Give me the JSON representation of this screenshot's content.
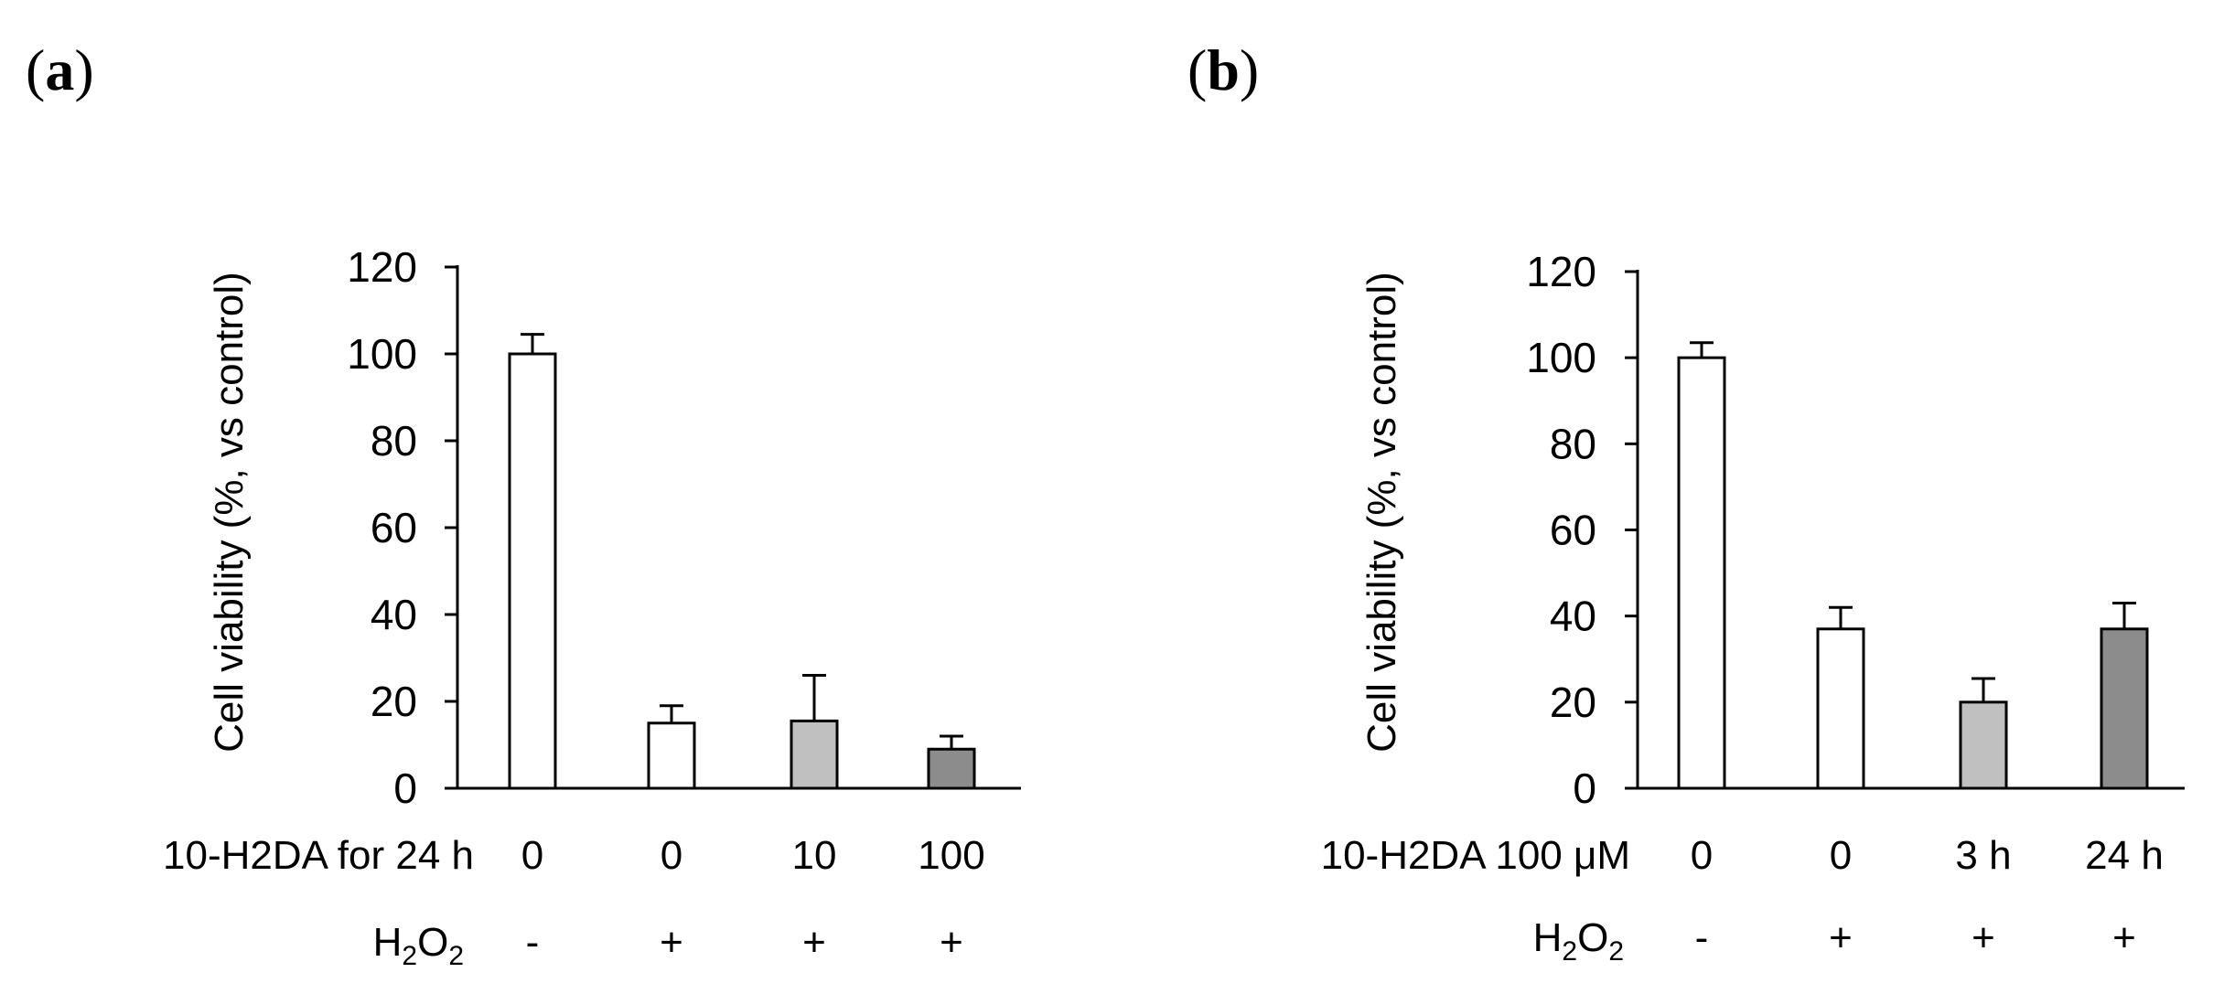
{
  "colors": {
    "white_bar": "#ffffff",
    "light_gray_bar": "#c0c0c0",
    "dark_gray_bar": "#8c8c8c",
    "stroke": "#000000"
  },
  "chart_data": [
    {
      "type": "bar",
      "panel_label": "a",
      "ylabel": "Cell viability (%, vs control)",
      "ylim": [
        0,
        120
      ],
      "yticks": [
        "0",
        "20",
        "40",
        "60",
        "80",
        "100",
        "120"
      ],
      "grid": false,
      "row_labels": [
        {
          "label": "10-H2DA for 24 h",
          "values": [
            "0",
            "0",
            "10",
            "100"
          ]
        },
        {
          "label_main": "H",
          "label_sub1": "2",
          "label_mid": "O",
          "label_sub2": "2",
          "values": [
            "-",
            "+",
            "+",
            "+"
          ]
        }
      ],
      "values": [
        100,
        15,
        15.5,
        9
      ],
      "errors": [
        4.5,
        4,
        10.5,
        3
      ],
      "fills": [
        "#ffffff",
        "#ffffff",
        "#c0c0c0",
        "#8c8c8c"
      ]
    },
    {
      "type": "bar",
      "panel_label": "b",
      "ylabel": "Cell viability (%, vs control)",
      "ylim": [
        0,
        120
      ],
      "yticks": [
        "0",
        "20",
        "40",
        "60",
        "80",
        "100",
        "120"
      ],
      "grid": false,
      "row_labels": [
        {
          "label": "10-H2DA 100 μM",
          "values": [
            "0",
            "0",
            "3 h",
            "24 h"
          ]
        },
        {
          "label_main": "H",
          "label_sub1": "2",
          "label_mid": "O",
          "label_sub2": "2",
          "values": [
            "-",
            "+",
            "+",
            "+"
          ]
        }
      ],
      "values": [
        100,
        37,
        20,
        37
      ],
      "errors": [
        3.5,
        5,
        5.5,
        6
      ],
      "fills": [
        "#ffffff",
        "#ffffff",
        "#c0c0c0",
        "#8c8c8c"
      ]
    }
  ]
}
